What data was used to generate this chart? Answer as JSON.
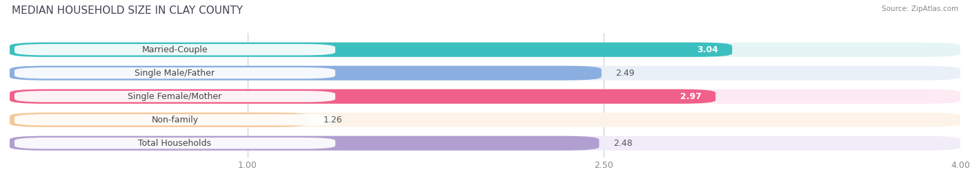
{
  "title": "MEDIAN HOUSEHOLD SIZE IN CLAY COUNTY",
  "source": "Source: ZipAtlas.com",
  "categories": [
    "Married-Couple",
    "Single Male/Father",
    "Single Female/Mother",
    "Non-family",
    "Total Households"
  ],
  "values": [
    3.04,
    2.49,
    2.97,
    1.26,
    2.48
  ],
  "bar_colors": [
    "#3bbfbf",
    "#8aaee0",
    "#f0608a",
    "#f5c89a",
    "#b09fd0"
  ],
  "bar_bg_colors": [
    "#e5f5f5",
    "#eaf0f8",
    "#fdeaf2",
    "#fdf3e8",
    "#f0ecf8"
  ],
  "value_inside": [
    true,
    false,
    true,
    false,
    false
  ],
  "xlim": [
    0,
    4.0
  ],
  "xticks": [
    1.0,
    2.5,
    4.0
  ],
  "xlabel_fontsize": 9,
  "title_fontsize": 11,
  "value_label_fontsize": 9,
  "bar_label_fontsize": 9,
  "background_color": "#ffffff"
}
